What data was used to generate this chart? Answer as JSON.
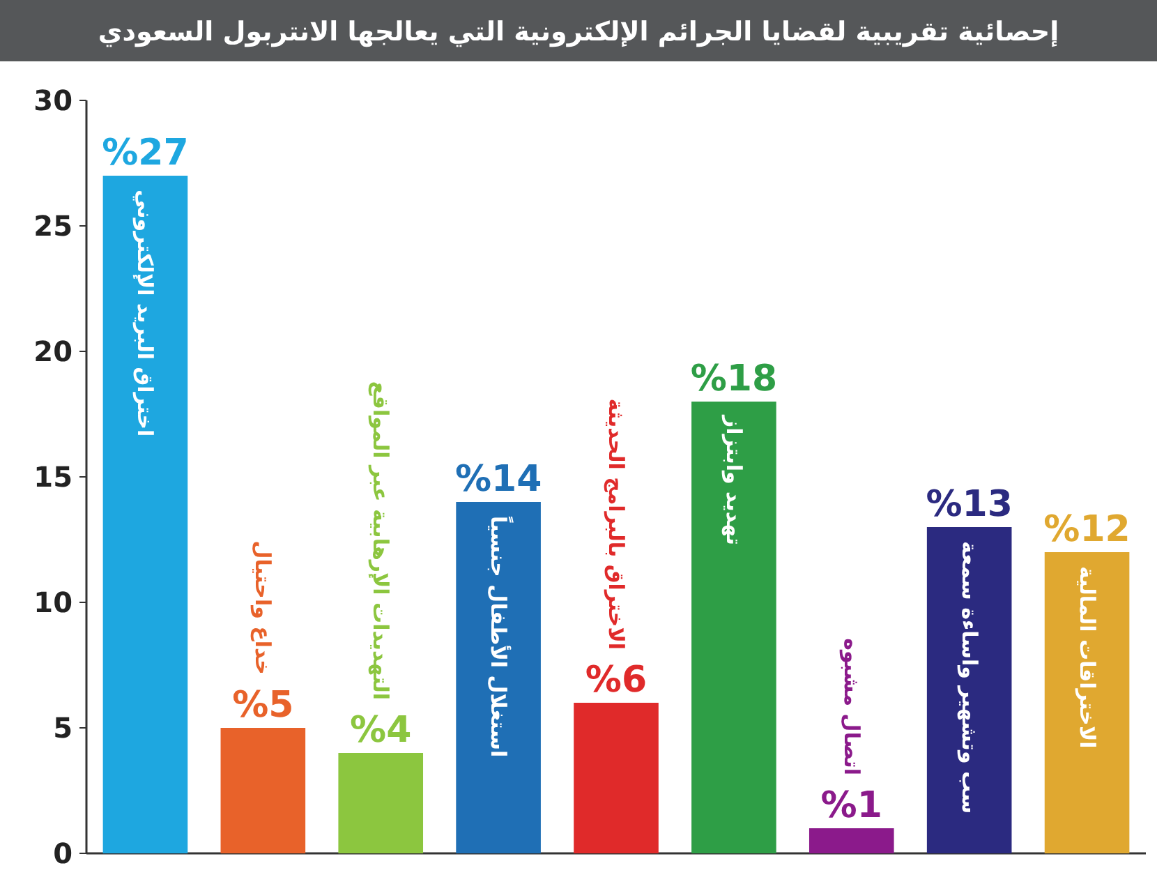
{
  "chart_data": {
    "type": "bar",
    "title": "إحصائية تقريبية لقضايا الجرائم الإلكترونية التي يعالجها الانتربول السعودي",
    "categories": [
      "اختراق البريد الإلكتروني",
      "خداع واحتيال",
      "التهديدات الإرهابية عبر المواقع",
      "استغلال الأطفال جنسياً",
      "الاختراق بالبرامج الحديثة",
      "تهديد وابتزاز",
      "اتصال مشبوه",
      "سب وتشهير واساءة سمعة",
      "الاختراقات المالية"
    ],
    "values": [
      27,
      5,
      4,
      14,
      6,
      18,
      1,
      13,
      12
    ],
    "value_labels": [
      "%27",
      "%5",
      "%4",
      "%14",
      "%6",
      "%18",
      "%1",
      "%13",
      "%12"
    ],
    "colors": [
      "#1ea7e0",
      "#e8622a",
      "#8cc63f",
      "#1f6fb5",
      "#e02a2a",
      "#2e9e46",
      "#8b1a8b",
      "#2b2a80",
      "#e0a830"
    ],
    "ylim": [
      0,
      30
    ],
    "yticks": [
      0,
      5,
      10,
      15,
      20,
      25,
      30
    ]
  }
}
